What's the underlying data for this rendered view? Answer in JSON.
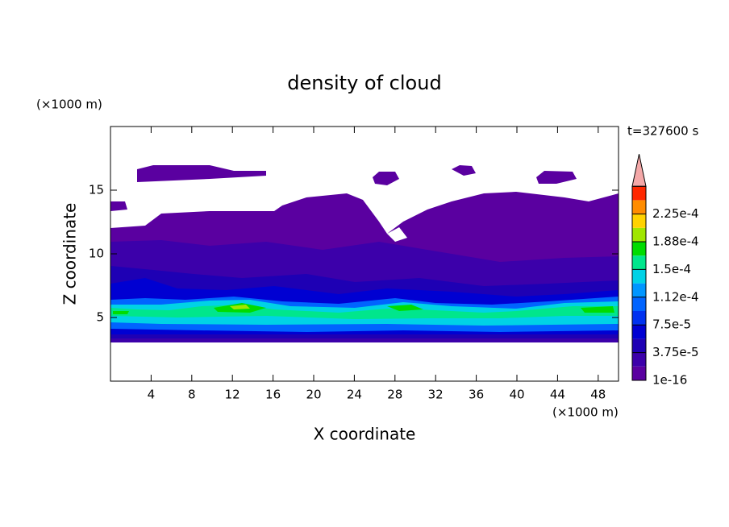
{
  "chart_data": {
    "type": "contour",
    "title": "density of cloud",
    "x_label": "X coordinate",
    "y_label": "Z coordinate",
    "x_unit": "(×1000 m)",
    "y_unit": "(×1000 m)",
    "annotation": "t=327600 s",
    "xlim": [
      0,
      50
    ],
    "xticks": [
      4,
      8,
      12,
      16,
      20,
      24,
      28,
      32,
      36,
      40,
      44,
      48
    ],
    "ylim": [
      0,
      20
    ],
    "yticks": [
      5,
      10,
      15
    ],
    "colorbar": {
      "colors": [
        "#5a00a0",
        "#3c00aa",
        "#1e00b4",
        "#0000d2",
        "#0032f0",
        "#0064ff",
        "#0096ff",
        "#00d2e6",
        "#00e68c",
        "#00dc00",
        "#a0e600",
        "#ffd200",
        "#ff8c00",
        "#ff2800"
      ],
      "extend_color": "#f4a8a8",
      "ticks": [
        {
          "value": 1e-16,
          "label": "1e-16"
        },
        {
          "value": 3.75e-05,
          "label": "3.75e-5"
        },
        {
          "value": 7.5e-05,
          "label": "7.5e-5"
        },
        {
          "value": 0.000112,
          "label": "1.12e-4"
        },
        {
          "value": 0.00015,
          "label": "1.5e-4"
        },
        {
          "value": 0.000188,
          "label": "1.88e-4"
        },
        {
          "value": 0.000225,
          "label": "2.25e-4"
        }
      ]
    }
  }
}
